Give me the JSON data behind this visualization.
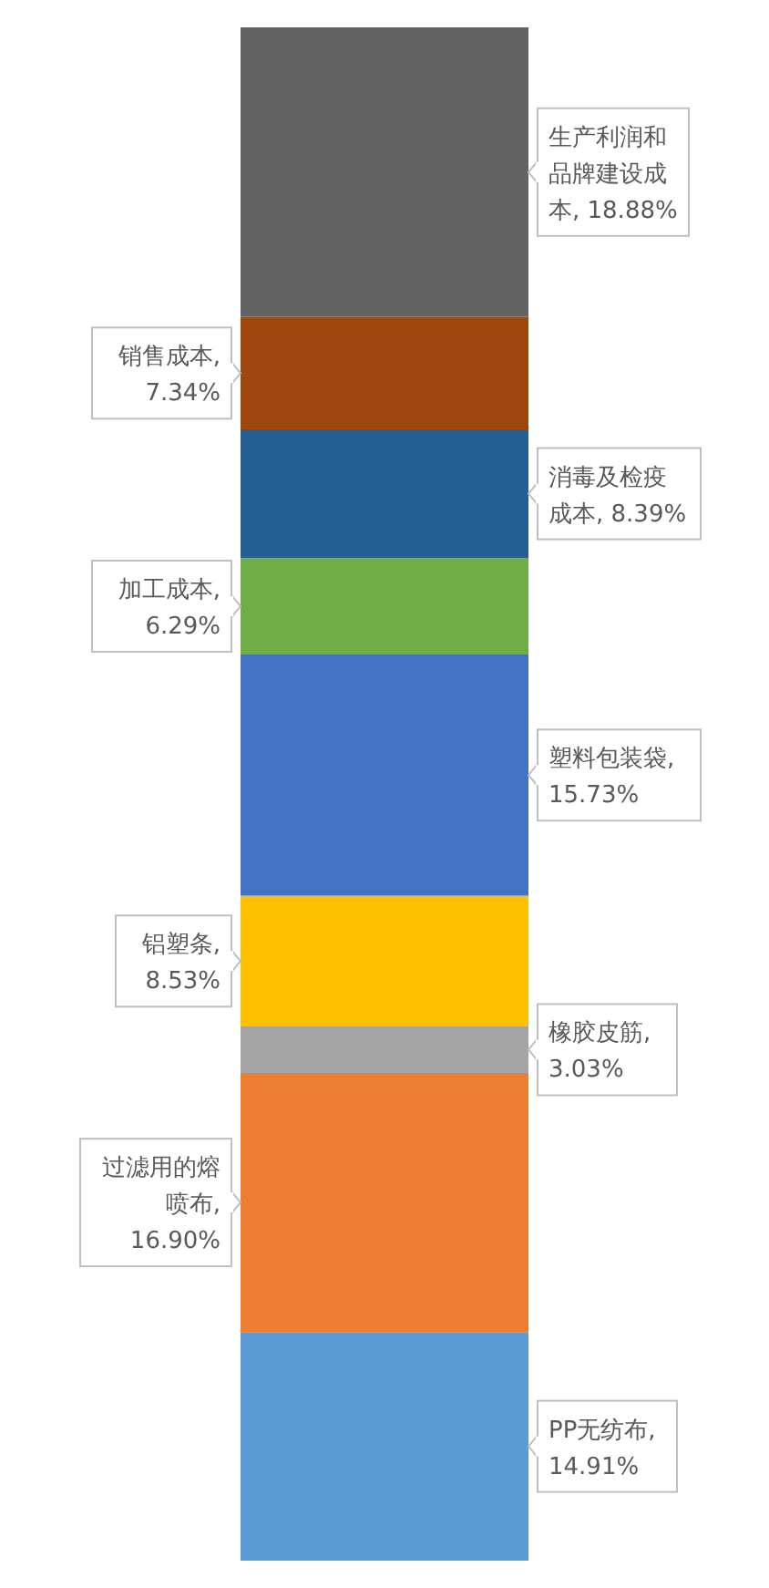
{
  "chart_data": {
    "type": "bar",
    "stacked": true,
    "categories": [
      null
    ],
    "series": [
      {
        "color": "#5b9bd5",
        "values": [
          14.91
        ],
        "value_labels": [
          "PP无纺布, 14.91%"
        ]
      },
      {
        "color": "#ed7d31",
        "values": [
          16.9
        ],
        "value_labels": [
          "过滤用的熔喷布, 16.90%"
        ]
      },
      {
        "color": "#a5a5a5",
        "values": [
          3.03
        ],
        "value_labels": [
          "橡胶皮筋, 3.03%"
        ]
      },
      {
        "color": "#ffc000",
        "values": [
          8.53
        ],
        "value_labels": [
          "铝塑条, 8.53%"
        ]
      },
      {
        "color": "#4472c4",
        "values": [
          15.73
        ],
        "value_labels": [
          "塑料包装袋, 15.73%"
        ]
      },
      {
        "color": "#70ad47",
        "values": [
          6.29
        ],
        "value_labels": [
          "加工成本, 6.29%"
        ]
      },
      {
        "color": "#255e91",
        "values": [
          8.39
        ],
        "value_labels": [
          "消毒及检疫成本, 8.39%"
        ]
      },
      {
        "color": "#9e480e",
        "values": [
          7.34
        ],
        "value_labels": [
          "销售成本, 7.34%"
        ]
      },
      {
        "color": "#636363",
        "values": [
          18.88
        ],
        "value_labels": [
          "生产利润和品牌建设成本, 18.88%"
        ]
      }
    ]
  }
}
